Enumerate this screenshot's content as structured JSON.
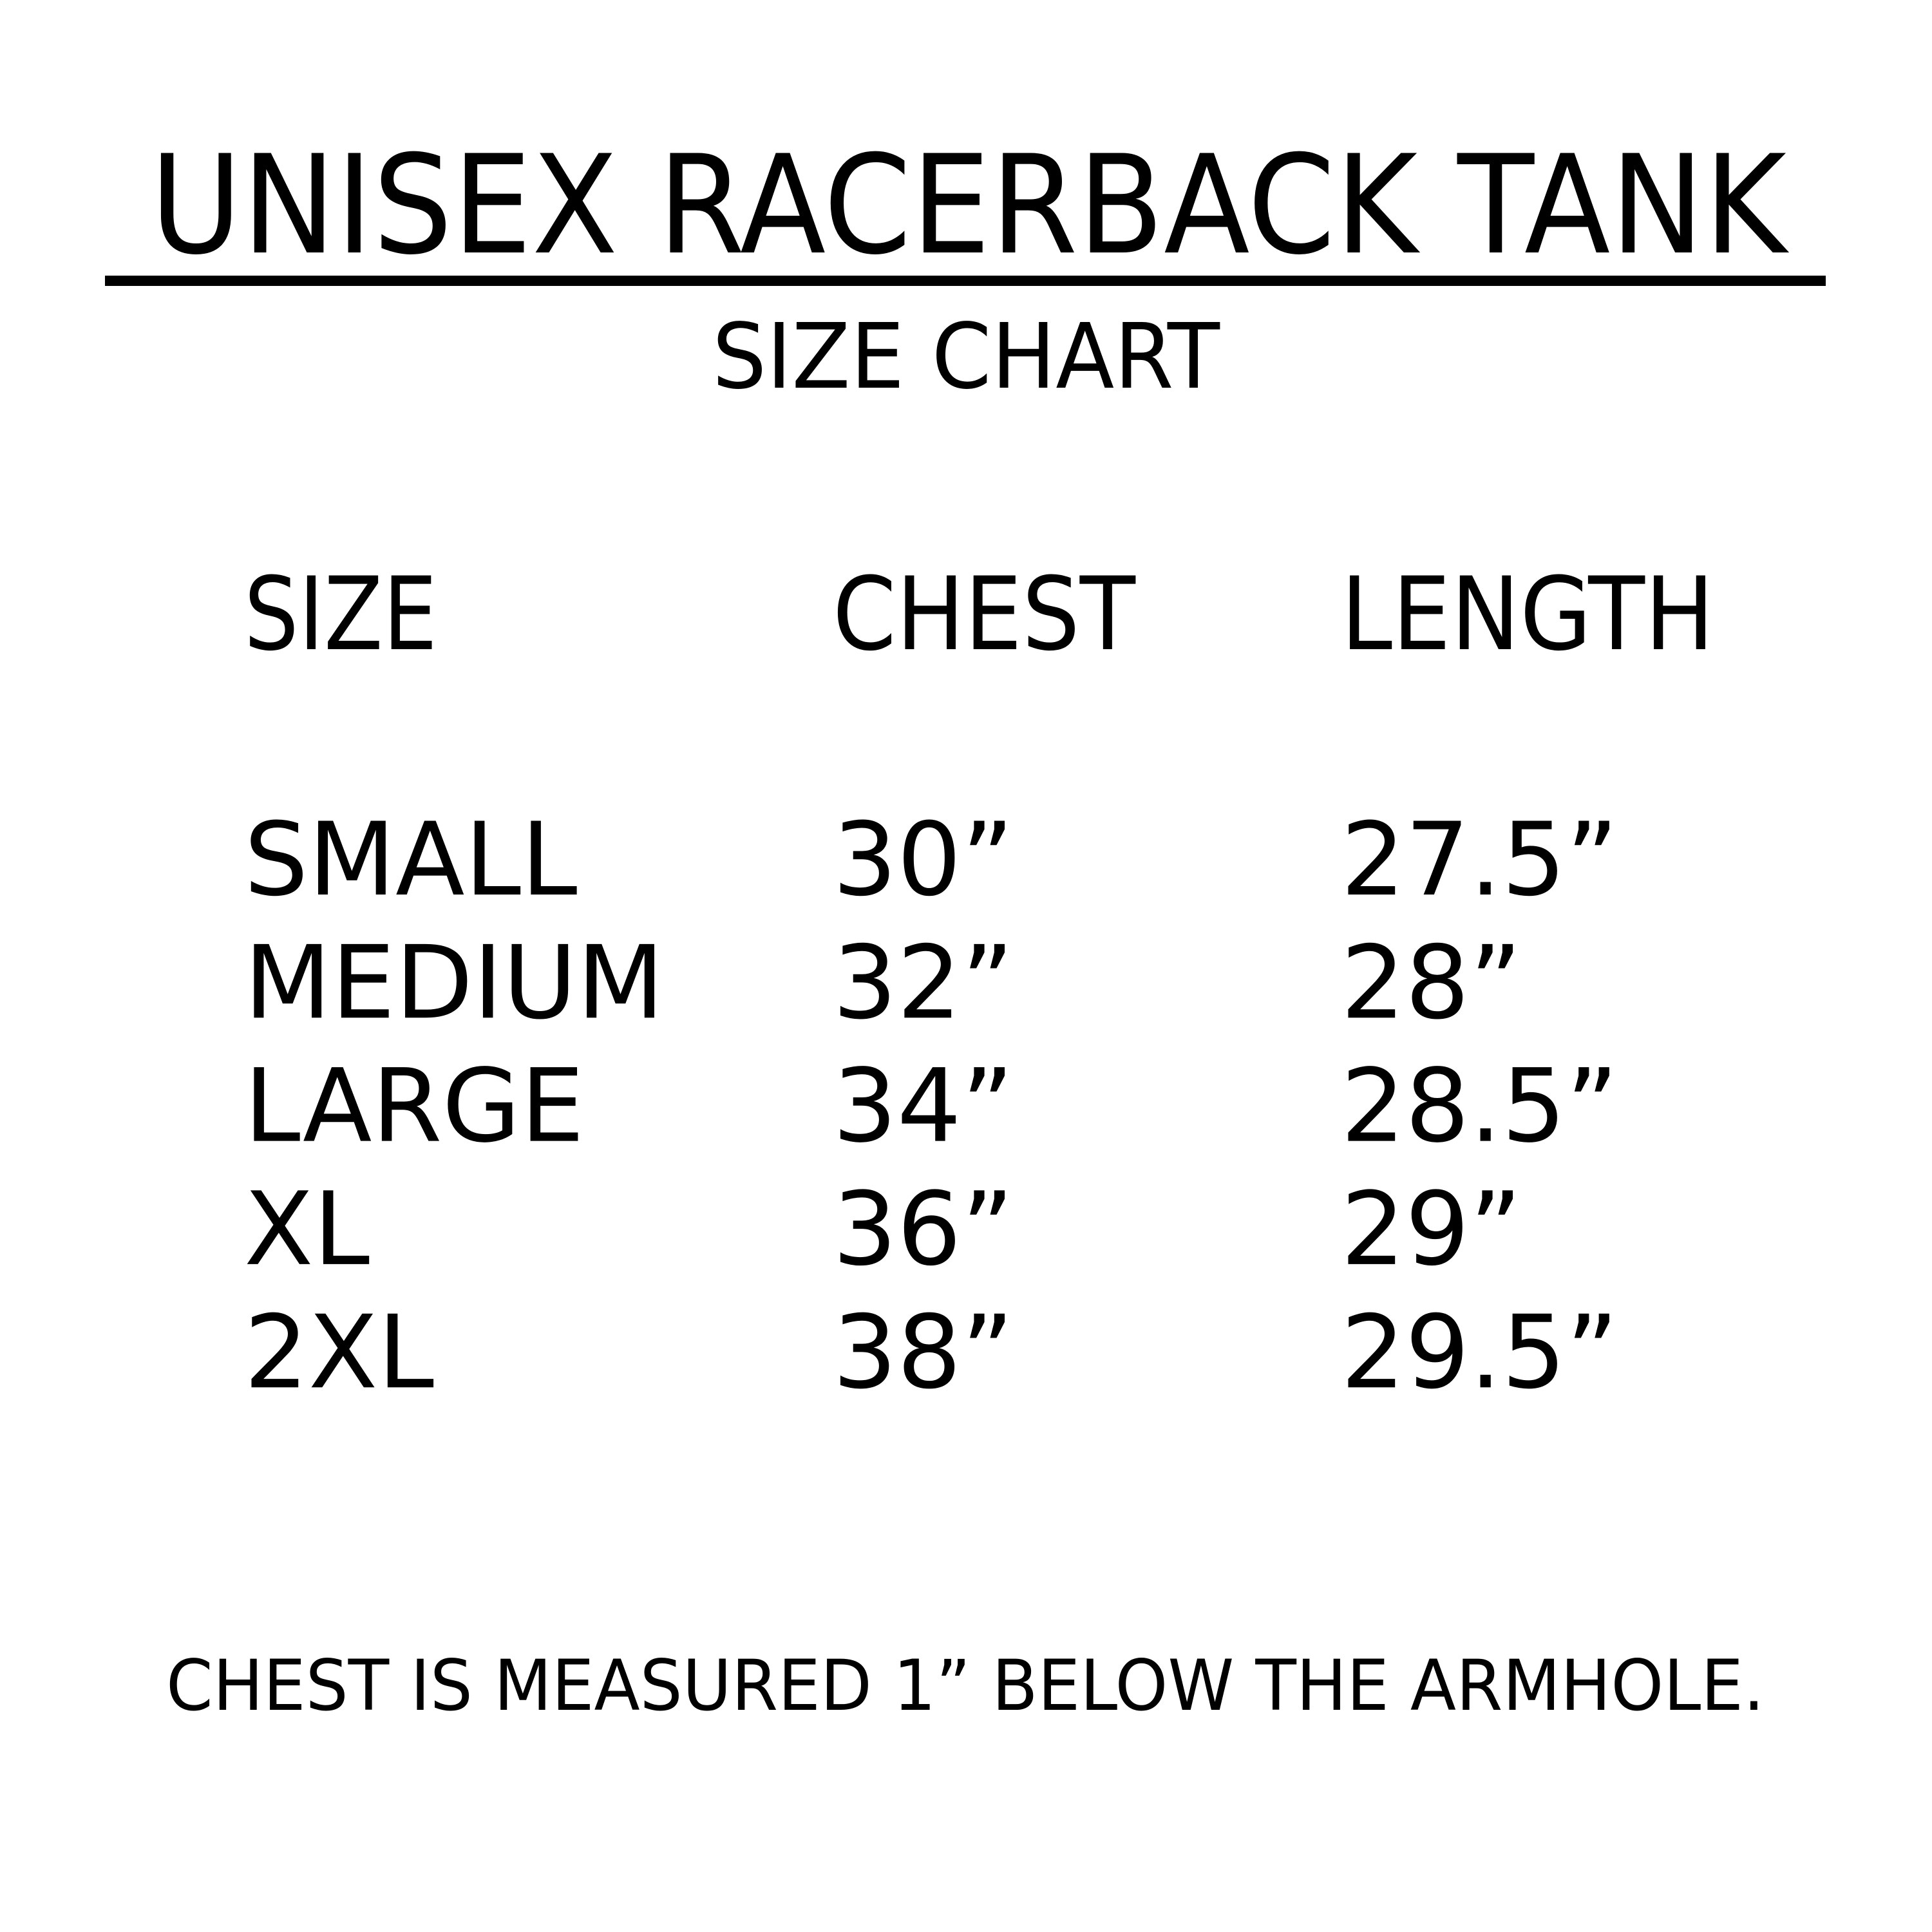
{
  "title": "UNISEX RACERBACK TANK",
  "subtitle": "SIZE CHART",
  "table": {
    "headers": [
      "SIZE",
      "CHEST",
      "LENGTH"
    ],
    "rows": [
      [
        "SMALL",
        "30”",
        "27.5”"
      ],
      [
        "MEDIUM",
        "32”",
        "28”"
      ],
      [
        "LARGE",
        "34”",
        "28.5”"
      ],
      [
        "XL",
        "36”",
        "29”"
      ],
      [
        "2XL",
        "38”",
        "29.5”"
      ]
    ]
  },
  "footnote": "CHEST IS MEASURED 1” BELOW THE ARMHOLE.",
  "colors": {
    "text": "#000000",
    "background": "#ffffff"
  }
}
